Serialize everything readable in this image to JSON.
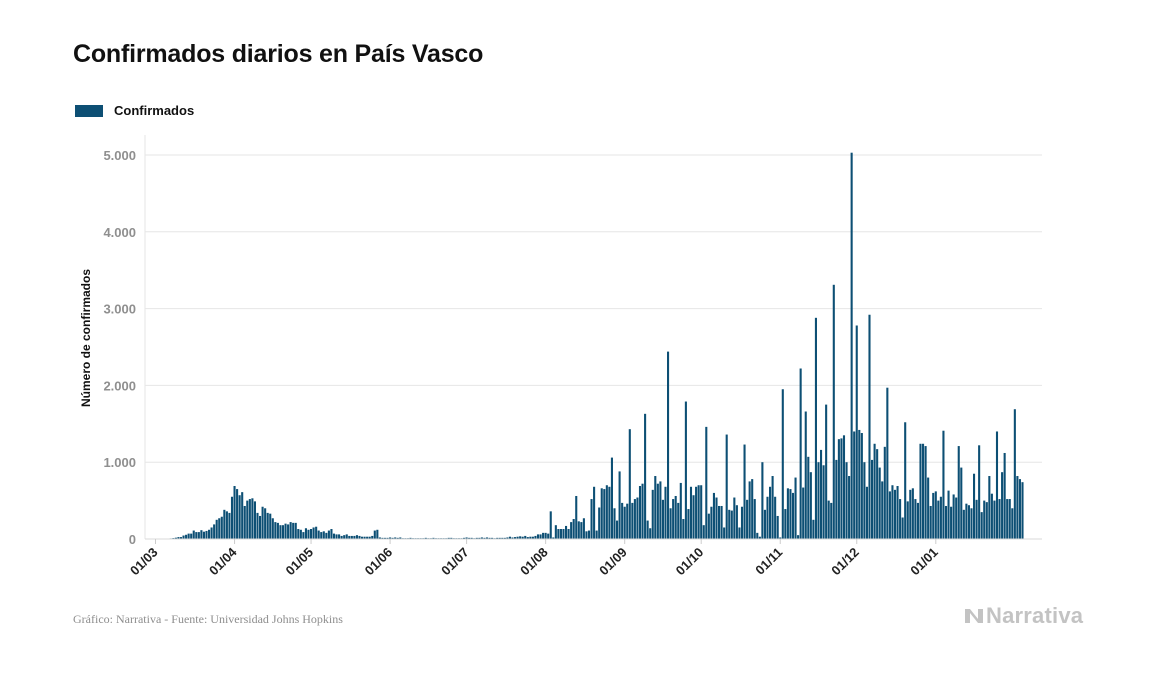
{
  "header": {
    "title": "Confirmados diarios en País Vasco"
  },
  "footer": {
    "source": "Gráfico: Narrativa - Fuente: Universidad Johns Hopkins"
  },
  "brand": {
    "name": "Narrativa",
    "logo_icon": "narrativa-logo-icon",
    "logo_color": "#c3c3c3"
  },
  "colors": {
    "bar": "#0d4f74",
    "grid": "#e6e6e6",
    "axis_text": "#8f8f8f"
  },
  "chart_data": {
    "type": "bar",
    "title": "Confirmados diarios en País Vasco",
    "ylabel": "Número de confirmados",
    "xlabel": "",
    "ylim": [
      0,
      5000
    ],
    "y_ticks": [
      0,
      1000,
      2000,
      3000,
      4000,
      5000
    ],
    "y_tick_labels": [
      "0",
      "1.000",
      "2.000",
      "3.000",
      "4.000",
      "5.000"
    ],
    "x_tick_labels": [
      "01/03",
      "01/04",
      "01/05",
      "01/06",
      "01/07",
      "01/08",
      "01/09",
      "01/10",
      "01/11",
      "01/12",
      "01/01"
    ],
    "x_ticks": [
      "2020-03-01",
      "2020-04-01",
      "2020-05-01",
      "2020-06-01",
      "2020-07-01",
      "2020-08-01",
      "2020-09-01",
      "2020-10-01",
      "2020-11-01",
      "2020-12-01",
      "2021-01-01"
    ],
    "legend": {
      "position": "top-left",
      "entries": [
        "Confirmados"
      ]
    },
    "grid": true,
    "series": [
      {
        "name": "Confirmados",
        "color": "#0d4f74",
        "start_date": "2020-03-01",
        "values": [
          1,
          1,
          2,
          3,
          5,
          5,
          8,
          12,
          17,
          25,
          25,
          45,
          55,
          70,
          70,
          110,
          90,
          90,
          115,
          95,
          105,
          120,
          150,
          190,
          250,
          270,
          290,
          380,
          360,
          340,
          550,
          690,
          650,
          570,
          610,
          430,
          500,
          520,
          530,
          490,
          340,
          300,
          420,
          400,
          340,
          330,
          270,
          220,
          210,
          180,
          180,
          200,
          190,
          220,
          210,
          210,
          130,
          120,
          90,
          140,
          120,
          130,
          150,
          160,
          110,
          90,
          100,
          80,
          110,
          130,
          70,
          60,
          60,
          40,
          50,
          60,
          40,
          40,
          40,
          50,
          40,
          30,
          30,
          30,
          30,
          40,
          110,
          120,
          20,
          15,
          15,
          15,
          20,
          15,
          20,
          15,
          20,
          10,
          10,
          10,
          15,
          10,
          10,
          10,
          10,
          10,
          15,
          10,
          10,
          15,
          10,
          10,
          10,
          10,
          10,
          15,
          15,
          10,
          10,
          10,
          10,
          15,
          20,
          15,
          15,
          10,
          15,
          15,
          20,
          15,
          20,
          15,
          15,
          10,
          15,
          15,
          15,
          15,
          20,
          30,
          20,
          25,
          30,
          35,
          30,
          40,
          25,
          30,
          30,
          40,
          60,
          60,
          80,
          80,
          70,
          360,
          20,
          180,
          130,
          130,
          130,
          170,
          130,
          220,
          260,
          560,
          230,
          220,
          270,
          100,
          110,
          520,
          680,
          110,
          410,
          660,
          650,
          700,
          680,
          1060,
          400,
          240,
          880,
          470,
          420,
          460,
          1430,
          470,
          520,
          540,
          690,
          720,
          1630,
          240,
          140,
          640,
          820,
          720,
          750,
          510,
          680,
          2440,
          400,
          520,
          560,
          470,
          730,
          260,
          1790,
          390,
          680,
          570,
          680,
          700,
          700,
          180,
          1460,
          330,
          420,
          600,
          540,
          430,
          430,
          150,
          1360,
          380,
          370,
          540,
          440,
          150,
          420,
          1230,
          510,
          750,
          780,
          520,
          80,
          30,
          1000,
          380,
          550,
          680,
          820,
          550,
          300,
          20,
          1950,
          390,
          660,
          650,
          600,
          800,
          50,
          2220,
          670,
          1660,
          1070,
          870,
          250,
          2880,
          1000,
          1160,
          960,
          1750,
          500,
          470,
          3310,
          1030,
          1300,
          1310,
          1350,
          1000,
          820,
          5030,
          1400,
          2780,
          1420,
          1380,
          1000,
          680,
          2920,
          1030,
          1240,
          1170,
          930,
          750,
          1200,
          1970,
          620,
          700,
          640,
          690,
          520,
          280,
          1520,
          490,
          640,
          660,
          520,
          470,
          1240,
          1240,
          1210,
          800,
          430,
          600,
          620,
          500,
          550,
          1410,
          430,
          630,
          420,
          580,
          540,
          1210,
          930,
          380,
          460,
          440,
          400,
          850,
          510,
          1220,
          350,
          500,
          480,
          820,
          590,
          500,
          1400,
          520,
          870,
          1120,
          520,
          520,
          400,
          1690,
          820,
          780,
          740
        ]
      }
    ]
  }
}
